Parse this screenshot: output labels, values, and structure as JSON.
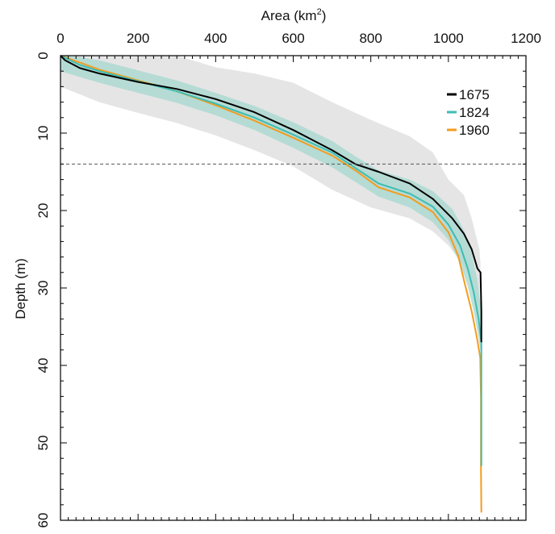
{
  "chart_data": {
    "type": "line",
    "xlabel": "Area (km",
    "xlabel_sup": "2",
    "xlabel_end": ")",
    "ylabel": "Depth (m)",
    "xlim": [
      0,
      1200
    ],
    "ylim": [
      0,
      60
    ],
    "y_inverted": true,
    "x_axis_position": "top",
    "x_ticks": [
      0,
      200,
      400,
      600,
      800,
      1000,
      1200
    ],
    "y_ticks": [
      0,
      10,
      20,
      30,
      40,
      50,
      60
    ],
    "grid": false,
    "legend_position": "top-right",
    "reference_line": {
      "depth": 14,
      "style": "dashed"
    },
    "series": [
      {
        "name": "1675",
        "color": "#000000",
        "points": [
          [
            0,
            0
          ],
          [
            12,
            0.6
          ],
          [
            50,
            1.6
          ],
          [
            100,
            2.3
          ],
          [
            200,
            3.4
          ],
          [
            300,
            4.3
          ],
          [
            400,
            5.6
          ],
          [
            500,
            7.3
          ],
          [
            600,
            9.6
          ],
          [
            700,
            12.2
          ],
          [
            760,
            14
          ],
          [
            820,
            15
          ],
          [
            900,
            16.5
          ],
          [
            960,
            18.5
          ],
          [
            1010,
            21
          ],
          [
            1040,
            23
          ],
          [
            1060,
            25
          ],
          [
            1075,
            27.5
          ],
          [
            1083,
            28
          ],
          [
            1085,
            33
          ],
          [
            1085,
            37
          ]
        ]
      },
      {
        "name": "1824",
        "color": "#3dbdb3",
        "points": [
          [
            0,
            0
          ],
          [
            50,
            1.2
          ],
          [
            100,
            2
          ],
          [
            200,
            3.3
          ],
          [
            300,
            4.6
          ],
          [
            400,
            6.2
          ],
          [
            500,
            8
          ],
          [
            600,
            10.2
          ],
          [
            700,
            12.5
          ],
          [
            760,
            14.5
          ],
          [
            820,
            16.5
          ],
          [
            900,
            17.8
          ],
          [
            960,
            19.5
          ],
          [
            1000,
            21.8
          ],
          [
            1030,
            24.5
          ],
          [
            1050,
            27.5
          ],
          [
            1065,
            30.5
          ],
          [
            1078,
            34
          ],
          [
            1085,
            37
          ],
          [
            1085,
            44
          ],
          [
            1085,
            53
          ]
        ]
      },
      {
        "name": "1960",
        "color": "#f39c1f",
        "points": [
          [
            0,
            0
          ],
          [
            50,
            0.9
          ],
          [
            100,
            1.8
          ],
          [
            200,
            3.2
          ],
          [
            300,
            4.6
          ],
          [
            400,
            6.4
          ],
          [
            500,
            8.4
          ],
          [
            600,
            10.6
          ],
          [
            700,
            12.9
          ],
          [
            760,
            14.8
          ],
          [
            820,
            17
          ],
          [
            900,
            18.3
          ],
          [
            960,
            20.2
          ],
          [
            1000,
            22.8
          ],
          [
            1025,
            25.8
          ],
          [
            1040,
            29
          ],
          [
            1060,
            33
          ],
          [
            1075,
            36.8
          ],
          [
            1082,
            39
          ],
          [
            1084,
            44
          ],
          [
            1084,
            53
          ],
          [
            1085,
            59
          ]
        ]
      }
    ],
    "bands": [
      {
        "color": "#dcdcdc",
        "upper": [
          [
            0,
            0
          ],
          [
            100,
            0
          ],
          [
            200,
            0
          ],
          [
            300,
            0
          ],
          [
            400,
            1.5
          ],
          [
            500,
            2.3
          ],
          [
            600,
            3.5
          ],
          [
            700,
            6
          ],
          [
            800,
            8.3
          ],
          [
            900,
            10.4
          ],
          [
            960,
            12.5
          ],
          [
            1000,
            16
          ],
          [
            1040,
            18
          ],
          [
            1060,
            21
          ],
          [
            1070,
            23
          ],
          [
            1080,
            25
          ],
          [
            1083,
            27
          ]
        ],
        "lower": [
          [
            0,
            4
          ],
          [
            100,
            6
          ],
          [
            200,
            7.4
          ],
          [
            300,
            8.7
          ],
          [
            400,
            10.3
          ],
          [
            500,
            12.2
          ],
          [
            600,
            14.3
          ],
          [
            700,
            17.3
          ],
          [
            800,
            19.6
          ],
          [
            900,
            21
          ],
          [
            960,
            22.7
          ],
          [
            1000,
            24.5
          ],
          [
            1030,
            26.5
          ],
          [
            1050,
            28
          ],
          [
            1065,
            30
          ],
          [
            1078,
            34
          ]
        ]
      },
      {
        "color": "#a9d8d0",
        "upper": [
          [
            0,
            0
          ],
          [
            50,
            0.2
          ],
          [
            100,
            0.6
          ],
          [
            200,
            1.9
          ],
          [
            300,
            3.2
          ],
          [
            400,
            4.8
          ],
          [
            500,
            6.5
          ],
          [
            600,
            8.6
          ],
          [
            700,
            11
          ],
          [
            760,
            13
          ],
          [
            820,
            14.8
          ],
          [
            900,
            16
          ],
          [
            960,
            17.5
          ],
          [
            1010,
            19.8
          ],
          [
            1040,
            22.5
          ],
          [
            1060,
            25.5
          ],
          [
            1075,
            29
          ],
          [
            1085,
            33
          ]
        ],
        "lower": [
          [
            0,
            2
          ],
          [
            100,
            3.5
          ],
          [
            200,
            4.8
          ],
          [
            300,
            6.1
          ],
          [
            400,
            7.7
          ],
          [
            500,
            9.6
          ],
          [
            600,
            11.9
          ],
          [
            700,
            14.4
          ],
          [
            760,
            16.3
          ],
          [
            820,
            18.2
          ],
          [
            900,
            19.6
          ],
          [
            960,
            21.5
          ],
          [
            1000,
            23.8
          ],
          [
            1030,
            26.8
          ],
          [
            1050,
            29.8
          ],
          [
            1065,
            33
          ],
          [
            1078,
            36.5
          ],
          [
            1085,
            39
          ]
        ]
      }
    ]
  }
}
